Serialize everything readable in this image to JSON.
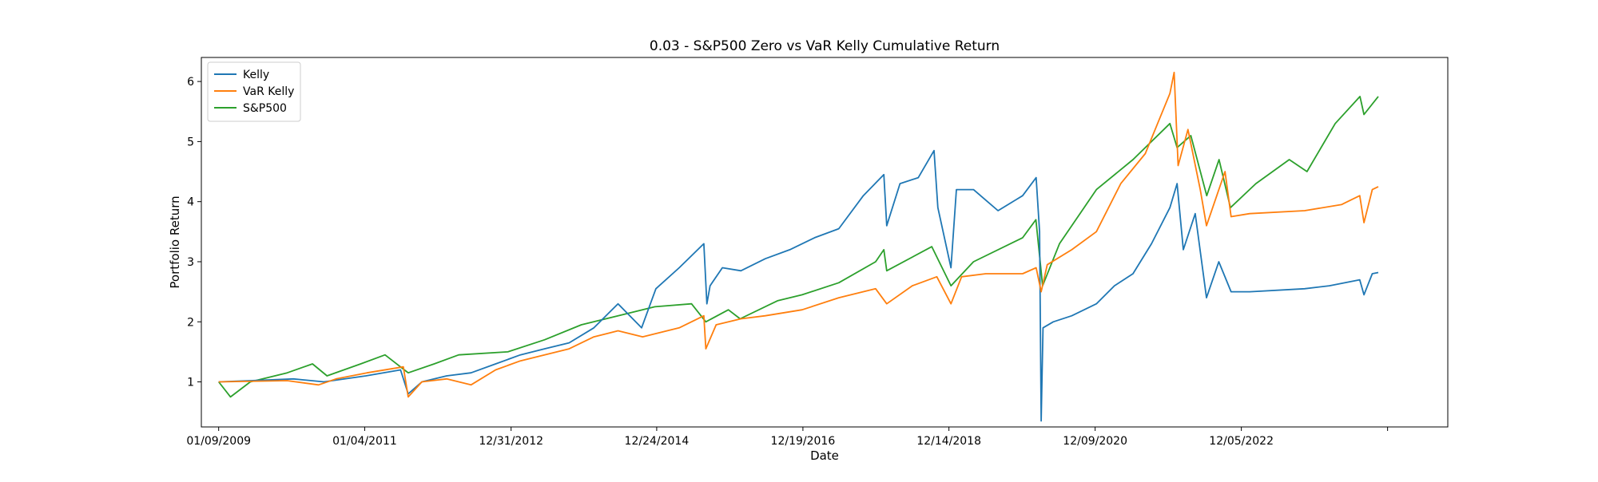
{
  "chart_data": {
    "type": "line",
    "title": "0.03 - S&P500 Zero vs VaR Kelly Cumulative Return",
    "xlabel": "Date",
    "ylabel": "Portfolio Return",
    "x_range": [
      "2008-10-15",
      "2025-09-25"
    ],
    "ylim": [
      0.25,
      6.4
    ],
    "x_ticks": [
      {
        "date": "2009-01-09",
        "label": "01/09/2009"
      },
      {
        "date": "2011-01-04",
        "label": "01/04/2011"
      },
      {
        "date": "2012-12-31",
        "label": "12/31/2012"
      },
      {
        "date": "2014-12-24",
        "label": "12/24/2014"
      },
      {
        "date": "2016-12-19",
        "label": "12/19/2016"
      },
      {
        "date": "2018-12-14",
        "label": "12/14/2018"
      },
      {
        "date": "2020-12-09",
        "label": "12/09/2020"
      },
      {
        "date": "2022-12-05",
        "label": "12/05/2022"
      },
      {
        "date": "2024-11-30",
        "label": ""
      }
    ],
    "y_ticks": [
      1,
      2,
      3,
      4,
      5,
      6
    ],
    "legend_position": "top-left",
    "grid": false,
    "series": [
      {
        "name": "Kelly",
        "color": "#1f77b4",
        "points": [
          [
            "2009-01-09",
            1.0
          ],
          [
            "2009-06-15",
            1.02
          ],
          [
            "2010-01-15",
            1.05
          ],
          [
            "2010-06-15",
            1.0
          ],
          [
            "2011-01-10",
            1.1
          ],
          [
            "2011-07-01",
            1.2
          ],
          [
            "2011-08-08",
            0.8
          ],
          [
            "2011-10-15",
            1.0
          ],
          [
            "2012-02-15",
            1.1
          ],
          [
            "2012-06-15",
            1.15
          ],
          [
            "2012-10-15",
            1.3
          ],
          [
            "2013-02-15",
            1.45
          ],
          [
            "2013-06-15",
            1.55
          ],
          [
            "2013-10-15",
            1.65
          ],
          [
            "2014-02-15",
            1.9
          ],
          [
            "2014-06-15",
            2.3
          ],
          [
            "2014-10-10",
            1.9
          ],
          [
            "2014-12-20",
            2.55
          ],
          [
            "2015-04-15",
            2.9
          ],
          [
            "2015-08-15",
            3.3
          ],
          [
            "2015-08-30",
            2.3
          ],
          [
            "2015-09-15",
            2.6
          ],
          [
            "2015-11-15",
            2.9
          ],
          [
            "2016-02-15",
            2.85
          ],
          [
            "2016-06-15",
            3.05
          ],
          [
            "2016-10-15",
            3.2
          ],
          [
            "2017-02-15",
            3.4
          ],
          [
            "2017-06-15",
            3.55
          ],
          [
            "2017-10-15",
            4.1
          ],
          [
            "2018-01-25",
            4.45
          ],
          [
            "2018-02-08",
            3.6
          ],
          [
            "2018-04-15",
            4.3
          ],
          [
            "2018-07-15",
            4.4
          ],
          [
            "2018-10-01",
            4.85
          ],
          [
            "2018-10-20",
            3.9
          ],
          [
            "2018-12-24",
            2.9
          ],
          [
            "2019-01-20",
            4.2
          ],
          [
            "2019-04-15",
            4.2
          ],
          [
            "2019-08-15",
            3.85
          ],
          [
            "2019-12-15",
            4.1
          ],
          [
            "2020-02-20",
            4.4
          ],
          [
            "2020-03-08",
            3.5
          ],
          [
            "2020-03-16",
            0.35
          ],
          [
            "2020-03-25",
            1.9
          ],
          [
            "2020-05-15",
            2.0
          ],
          [
            "2020-08-15",
            2.1
          ],
          [
            "2020-12-15",
            2.3
          ],
          [
            "2021-03-15",
            2.6
          ],
          [
            "2021-06-15",
            2.8
          ],
          [
            "2021-09-15",
            3.3
          ],
          [
            "2021-12-15",
            3.9
          ],
          [
            "2022-01-20",
            4.3
          ],
          [
            "2022-02-20",
            3.2
          ],
          [
            "2022-04-20",
            3.8
          ],
          [
            "2022-06-15",
            2.4
          ],
          [
            "2022-08-15",
            3.0
          ],
          [
            "2022-10-15",
            2.5
          ],
          [
            "2023-01-15",
            2.5
          ],
          [
            "2023-10-15",
            2.55
          ],
          [
            "2024-02-15",
            2.6
          ],
          [
            "2024-07-15",
            2.7
          ],
          [
            "2024-08-05",
            2.45
          ],
          [
            "2024-09-15",
            2.8
          ],
          [
            "2024-10-15",
            2.82
          ]
        ]
      },
      {
        "name": "VaR Kelly",
        "color": "#ff7f0e",
        "points": [
          [
            "2009-01-09",
            1.0
          ],
          [
            "2009-12-15",
            1.02
          ],
          [
            "2010-05-20",
            0.95
          ],
          [
            "2010-08-15",
            1.05
          ],
          [
            "2011-01-15",
            1.15
          ],
          [
            "2011-07-15",
            1.25
          ],
          [
            "2011-08-08",
            0.75
          ],
          [
            "2011-10-15",
            1.0
          ],
          [
            "2012-02-15",
            1.05
          ],
          [
            "2012-06-15",
            0.95
          ],
          [
            "2012-10-15",
            1.2
          ],
          [
            "2013-02-15",
            1.35
          ],
          [
            "2013-06-15",
            1.45
          ],
          [
            "2013-10-15",
            1.55
          ],
          [
            "2014-02-15",
            1.75
          ],
          [
            "2014-06-15",
            1.85
          ],
          [
            "2014-10-15",
            1.75
          ],
          [
            "2015-04-15",
            1.9
          ],
          [
            "2015-08-15",
            2.1
          ],
          [
            "2015-08-25",
            1.55
          ],
          [
            "2015-10-15",
            1.95
          ],
          [
            "2016-02-15",
            2.05
          ],
          [
            "2016-06-15",
            2.1
          ],
          [
            "2016-12-15",
            2.2
          ],
          [
            "2017-06-15",
            2.4
          ],
          [
            "2017-12-15",
            2.55
          ],
          [
            "2018-02-08",
            2.3
          ],
          [
            "2018-06-15",
            2.6
          ],
          [
            "2018-10-15",
            2.75
          ],
          [
            "2018-12-24",
            2.3
          ],
          [
            "2019-02-15",
            2.75
          ],
          [
            "2019-06-15",
            2.8
          ],
          [
            "2019-12-15",
            2.8
          ],
          [
            "2020-02-20",
            2.9
          ],
          [
            "2020-03-16",
            2.5
          ],
          [
            "2020-04-15",
            2.95
          ],
          [
            "2020-08-15",
            3.2
          ],
          [
            "2020-12-15",
            3.5
          ],
          [
            "2021-04-15",
            4.3
          ],
          [
            "2021-08-15",
            4.8
          ],
          [
            "2021-10-15",
            5.3
          ],
          [
            "2021-12-15",
            5.8
          ],
          [
            "2022-01-05",
            6.15
          ],
          [
            "2022-01-25",
            4.6
          ],
          [
            "2022-03-15",
            5.2
          ],
          [
            "2022-05-15",
            4.2
          ],
          [
            "2022-06-15",
            3.6
          ],
          [
            "2022-09-15",
            4.5
          ],
          [
            "2022-10-15",
            3.75
          ],
          [
            "2023-01-15",
            3.8
          ],
          [
            "2023-10-15",
            3.85
          ],
          [
            "2024-04-15",
            3.95
          ],
          [
            "2024-07-15",
            4.1
          ],
          [
            "2024-08-05",
            3.65
          ],
          [
            "2024-09-15",
            4.2
          ],
          [
            "2024-10-15",
            4.25
          ]
        ]
      },
      {
        "name": "S&P500",
        "color": "#2ca02c",
        "points": [
          [
            "2009-01-09",
            1.0
          ],
          [
            "2009-03-09",
            0.75
          ],
          [
            "2009-06-15",
            1.0
          ],
          [
            "2009-12-15",
            1.15
          ],
          [
            "2010-04-20",
            1.3
          ],
          [
            "2010-07-01",
            1.1
          ],
          [
            "2010-12-15",
            1.3
          ],
          [
            "2011-04-15",
            1.45
          ],
          [
            "2011-08-08",
            1.15
          ],
          [
            "2011-12-15",
            1.3
          ],
          [
            "2012-04-15",
            1.45
          ],
          [
            "2012-12-15",
            1.5
          ],
          [
            "2013-06-15",
            1.7
          ],
          [
            "2013-12-15",
            1.95
          ],
          [
            "2014-06-15",
            2.1
          ],
          [
            "2014-12-15",
            2.25
          ],
          [
            "2015-06-15",
            2.3
          ],
          [
            "2015-08-25",
            2.0
          ],
          [
            "2015-12-15",
            2.2
          ],
          [
            "2016-02-11",
            2.05
          ],
          [
            "2016-08-15",
            2.35
          ],
          [
            "2016-12-15",
            2.45
          ],
          [
            "2017-06-15",
            2.65
          ],
          [
            "2017-12-15",
            3.0
          ],
          [
            "2018-01-25",
            3.2
          ],
          [
            "2018-02-08",
            2.85
          ],
          [
            "2018-09-20",
            3.25
          ],
          [
            "2018-12-24",
            2.6
          ],
          [
            "2019-04-15",
            3.0
          ],
          [
            "2019-12-15",
            3.4
          ],
          [
            "2020-02-19",
            3.7
          ],
          [
            "2020-03-23",
            2.6
          ],
          [
            "2020-06-15",
            3.3
          ],
          [
            "2020-10-15",
            3.9
          ],
          [
            "2020-12-15",
            4.2
          ],
          [
            "2021-06-15",
            4.7
          ],
          [
            "2021-12-15",
            5.3
          ],
          [
            "2022-01-20",
            4.9
          ],
          [
            "2022-03-29",
            5.1
          ],
          [
            "2022-06-16",
            4.1
          ],
          [
            "2022-08-16",
            4.7
          ],
          [
            "2022-10-12",
            3.9
          ],
          [
            "2023-02-15",
            4.3
          ],
          [
            "2023-07-31",
            4.7
          ],
          [
            "2023-10-27",
            4.5
          ],
          [
            "2024-03-15",
            5.3
          ],
          [
            "2024-07-16",
            5.75
          ],
          [
            "2024-08-05",
            5.45
          ],
          [
            "2024-10-15",
            5.75
          ]
        ]
      }
    ]
  }
}
